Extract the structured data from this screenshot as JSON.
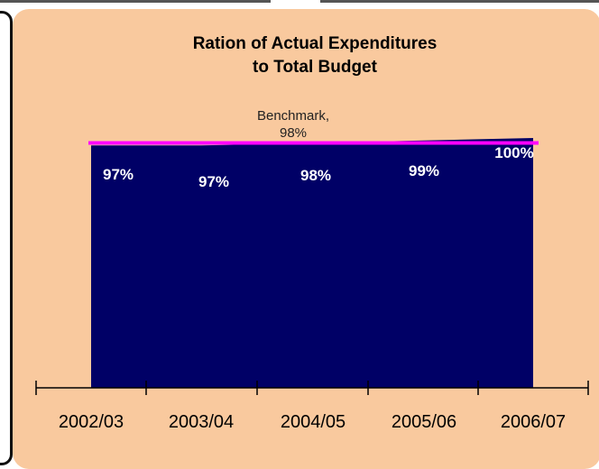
{
  "chart_data": {
    "type": "area",
    "title": [
      "Ration of Actual Expenditures",
      "to Total Budget"
    ],
    "categories": [
      "2002/03",
      "2003/04",
      "2004/05",
      "2005/06",
      "2006/07"
    ],
    "series": [
      {
        "values": [
          97,
          97,
          98,
          99,
          100
        ],
        "labels": [
          "97%",
          "97%",
          "98%",
          "99%",
          "100%"
        ],
        "color": "#000066"
      }
    ],
    "benchmark": {
      "value": 98,
      "label_line1": "Benchmark,",
      "label_line2": "98%",
      "color": "#ff00ff"
    },
    "ylim": [
      0,
      100
    ],
    "grid": false,
    "legend": "none",
    "colors": {
      "background": "#f9c99e",
      "area": "#000066",
      "benchmark": "#ff00ff"
    }
  }
}
